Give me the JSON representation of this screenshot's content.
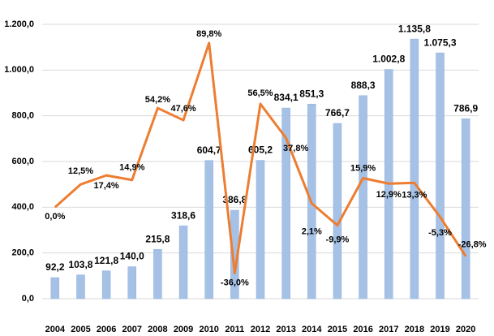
{
  "chart_data": {
    "type": "bar-line",
    "categories": [
      "2004",
      "2005",
      "2006",
      "2007",
      "2008",
      "2009",
      "2010",
      "2011",
      "2012",
      "2013",
      "2014",
      "2015",
      "2016",
      "2017",
      "2018",
      "2019",
      "2020"
    ],
    "series": [
      {
        "type": "bar",
        "color": "#a6c1e6",
        "values": [
          92.2,
          103.8,
          121.8,
          140.0,
          215.8,
          318.6,
          604.7,
          386.8,
          605.2,
          834.1,
          851.3,
          766.7,
          888.3,
          1002.8,
          1135.8,
          1075.3,
          786.9
        ],
        "value_labels": [
          "92,2",
          "103,8",
          "121,8",
          "140,0",
          "215,8",
          "318,6",
          "604,7",
          "386,8",
          "605,2",
          "834,1",
          "851,3",
          "766,7",
          "888,3",
          "1.002,8",
          "1.135,8",
          "1.075,3",
          "786,9"
        ]
      },
      {
        "type": "line",
        "axis": "y2",
        "color": "#ed7d31",
        "values": [
          0.0,
          12.5,
          17.4,
          14.9,
          54.2,
          47.6,
          89.8,
          -36.0,
          56.5,
          37.8,
          2.1,
          -9.9,
          15.9,
          12.9,
          13.3,
          -5.3,
          -26.8
        ],
        "value_labels": [
          "0,0%",
          "12,5%",
          "17,4%",
          "14,9%",
          "54,2%",
          "47,6%",
          "89,8%",
          "-36,0%",
          "56,5%",
          "37,8%",
          "2,1%",
          "-9,9%",
          "15,9%",
          "12,9%",
          "13,3%",
          "-5,3%",
          "-26,8%"
        ]
      }
    ],
    "ylim": [
      0,
      1200
    ],
    "yticks": [
      {
        "value": 0,
        "label": "0,0"
      },
      {
        "value": 200,
        "label": "200,0"
      },
      {
        "value": 400,
        "label": "400,0"
      },
      {
        "value": 600,
        "label": "600,0"
      },
      {
        "value": 800,
        "label": "800,0"
      },
      {
        "value": 1000,
        "label": "1.000,0"
      },
      {
        "value": 1200,
        "label": "1.200,0"
      }
    ],
    "y2lim": [
      -50,
      100
    ],
    "grid": true
  }
}
